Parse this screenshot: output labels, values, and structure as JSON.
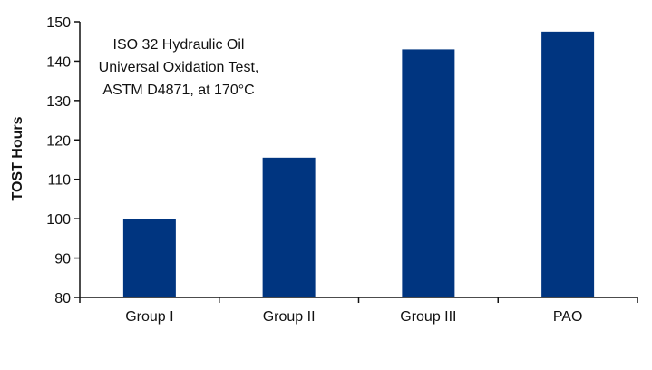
{
  "chart_data": {
    "type": "bar",
    "title": "",
    "xlabel": "",
    "ylabel": "TOST Hours",
    "categories": [
      "Group I",
      "Group II",
      "Group III",
      "PAO"
    ],
    "values": [
      100,
      115.5,
      143,
      147.5
    ],
    "ylim": [
      80,
      150
    ],
    "yticks": [
      80,
      90,
      100,
      110,
      120,
      130,
      140,
      150
    ],
    "grid": false,
    "legend": "none",
    "bar_color": "#003580",
    "annotation_lines": [
      "ISO 32 Hydraulic Oil",
      "Universal Oxidation Test,",
      "ASTM D4871, at 170°C"
    ]
  }
}
